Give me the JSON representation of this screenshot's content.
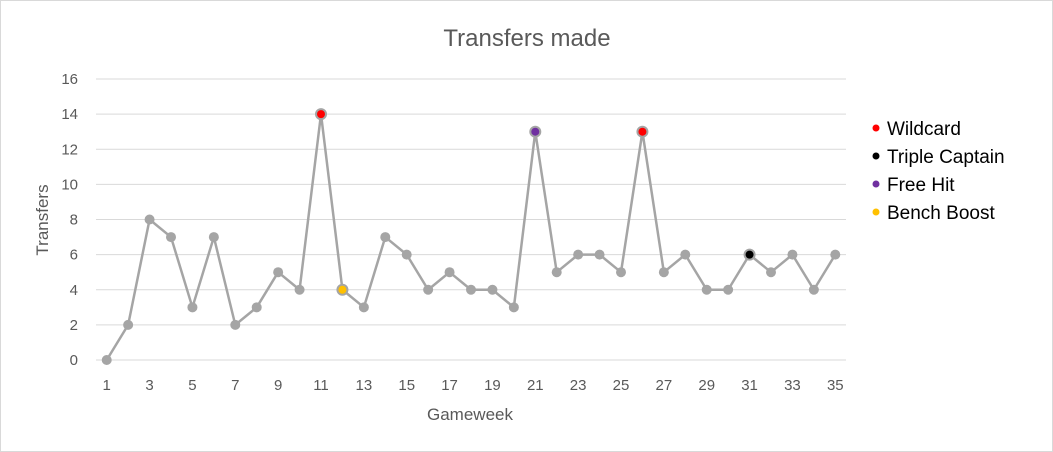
{
  "chart_data": {
    "type": "line",
    "title": "Transfers made",
    "xlabel": "Gameweek",
    "ylabel": "Transfers",
    "x": [
      1,
      2,
      3,
      4,
      5,
      6,
      7,
      8,
      9,
      10,
      11,
      12,
      13,
      14,
      15,
      16,
      17,
      18,
      19,
      20,
      21,
      22,
      23,
      24,
      25,
      26,
      27,
      28,
      29,
      30,
      31,
      32,
      33,
      34,
      35
    ],
    "x_tick_labels": [
      "1",
      "3",
      "5",
      "7",
      "9",
      "11",
      "13",
      "15",
      "17",
      "19",
      "21",
      "23",
      "25",
      "27",
      "29",
      "31",
      "33",
      "35"
    ],
    "ylim": [
      0,
      16
    ],
    "y_ticks": [
      0,
      2,
      4,
      6,
      8,
      10,
      12,
      14,
      16
    ],
    "grid": true,
    "legend_position": "right",
    "series": [
      {
        "values": [
          0,
          2,
          8,
          7,
          3,
          7,
          2,
          3,
          5,
          4,
          14,
          4,
          3,
          7,
          6,
          4,
          5,
          4,
          4,
          3,
          13,
          5,
          6,
          6,
          5,
          13,
          5,
          6,
          4,
          4,
          6,
          5,
          6,
          4,
          6
        ],
        "color": "#a5a5a5"
      }
    ],
    "chips": [
      {
        "name": "Wildcard",
        "color": "#ff0000",
        "gameweeks": [
          11,
          26
        ]
      },
      {
        "name": "Triple Captain",
        "color": "#000000",
        "gameweeks": [
          31
        ]
      },
      {
        "name": "Free Hit",
        "color": "#7030a0",
        "gameweeks": [
          21
        ]
      },
      {
        "name": "Bench Boost",
        "color": "#ffc000",
        "gameweeks": [
          12
        ]
      }
    ]
  }
}
